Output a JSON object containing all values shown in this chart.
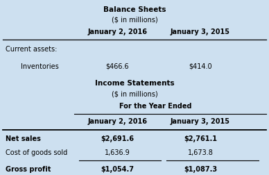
{
  "bg_color": "#cde0f0",
  "text_color": "#000000",
  "balance_sheet_title": "Balance Sheets",
  "balance_sheet_subtitle": "($ in millions)",
  "income_stmt_title": "Income Statements",
  "income_stmt_subtitle": "($ in millions)",
  "for_year_ended": "For the Year Ended",
  "col1_header": "January 2, 2016",
  "col2_header": "January 3, 2015",
  "bs_label1": "Current assets:",
  "bs_label2": "Inventories",
  "bs_val1_col1": "$466.6",
  "bs_val1_col2": "$414.0",
  "is_row_labels": [
    "Net sales",
    "Cost of goods sold",
    "Gross profit"
  ],
  "is_col1_vals": [
    "$2,691.6",
    "1,636.9",
    "$1,054.7"
  ],
  "is_col2_vals": [
    "$2,761.1",
    "1,673.8",
    "$1,087.3"
  ]
}
